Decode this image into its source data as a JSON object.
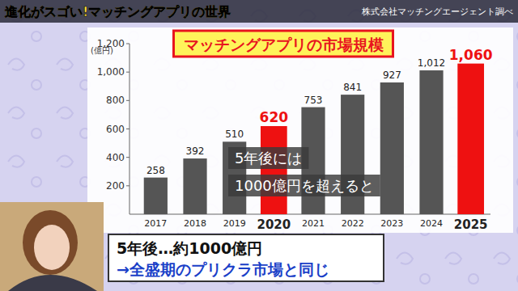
{
  "chart_data": {
    "type": "bar",
    "title": "マッチングアプリの市場規模",
    "ylabel": "(億円)",
    "categories": [
      "2017",
      "2018",
      "2019",
      "2020",
      "2021",
      "2022",
      "2023",
      "2024",
      "2025"
    ],
    "values": [
      258,
      392,
      510,
      620,
      753,
      841,
      927,
      1012,
      1060
    ],
    "value_labels": [
      "258",
      "392",
      "510",
      "620",
      "753",
      "841",
      "927",
      "1,012",
      "1,060"
    ],
    "colors": [
      "#555555",
      "#555555",
      "#555555",
      "#ee1111",
      "#555555",
      "#555555",
      "#555555",
      "#555555",
      "#ee1111"
    ],
    "ylim": [
      0,
      1200
    ],
    "yticks": [
      200,
      400,
      600,
      800,
      {
        "value": 1000,
        "label": "1,000"
      },
      {
        "value": 1200,
        "label": "1,200"
      }
    ],
    "grid": false,
    "data_labels": true,
    "annotations": [
      "5年後には",
      "1000億円を超えると"
    ]
  },
  "header": {
    "banner": "進化がスゴい!マッチングアプリの世界",
    "source": "株式会社マッチングエージェント調べ"
  },
  "caption": {
    "line1": "5年後…約1000億円",
    "line2": "→全盛期のプリクラ市場と同じ"
  }
}
